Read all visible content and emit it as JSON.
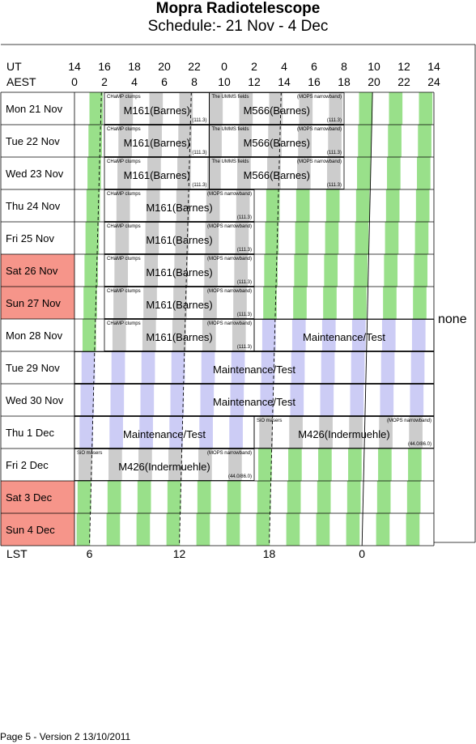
{
  "title": "Mopra Radiotelescope",
  "subtitle": "Schedule:- 21 Nov - 4  Dec",
  "ut_label": "UT",
  "aest_label": "AEST",
  "lst_label": "LST",
  "ut_ticks": [
    "14",
    "16",
    "18",
    "20",
    "22",
    "0",
    "2",
    "4",
    "6",
    "8",
    "10",
    "12",
    "14"
  ],
  "aest_ticks": [
    "0",
    "2",
    "4",
    "6",
    "8",
    "10",
    "12",
    "14",
    "16",
    "18",
    "20",
    "22",
    "24"
  ],
  "lst_ticks": [
    "6",
    "12",
    "18",
    "0"
  ],
  "days": [
    {
      "label": "Mon  21 Nov",
      "weekend": false
    },
    {
      "label": "Tue  22 Nov",
      "weekend": false
    },
    {
      "label": "Wed  23 Nov",
      "weekend": false
    },
    {
      "label": "Thu  24 Nov",
      "weekend": false
    },
    {
      "label": "Fri   25 Nov",
      "weekend": false
    },
    {
      "label": "Sat   26 Nov",
      "weekend": true
    },
    {
      "label": "Sun  27 Nov",
      "weekend": true
    },
    {
      "label": "Mon  28 Nov",
      "weekend": false
    },
    {
      "label": "Tue  29 Nov",
      "weekend": false
    },
    {
      "label": "Wed  30 Nov",
      "weekend": false
    },
    {
      "label": "Thu   1  Dec",
      "weekend": false
    },
    {
      "label": "Fri    2  Dec",
      "weekend": false
    },
    {
      "label": "Sat    3  Dec",
      "weekend": true
    },
    {
      "label": "Sun   4  Dec",
      "weekend": true
    }
  ],
  "blocks": [
    {
      "day": 0,
      "start": 2.0,
      "end": 9.0,
      "project": "M161(Barnes)",
      "top_left": "CHaMP clumps",
      "top_right": "",
      "bottom_right": "(111.3)"
    },
    {
      "day": 0,
      "start": 9.0,
      "end": 18.0,
      "project": "M566(Barnes)",
      "top_left": "The UMMS fields",
      "top_right": "(MOPS narrowband)",
      "bottom_right": "(111.3)"
    },
    {
      "day": 1,
      "start": 2.0,
      "end": 9.0,
      "project": "M161(Barnes)",
      "top_left": "CHaMP clumps",
      "top_right": "",
      "bottom_right": "(111.3)"
    },
    {
      "day": 1,
      "start": 9.0,
      "end": 18.0,
      "project": "M566(Barnes)",
      "top_left": "The UMMS fields",
      "top_right": "(MOPS narrowband)",
      "bottom_right": "(111.3)"
    },
    {
      "day": 2,
      "start": 2.0,
      "end": 9.0,
      "project": "M161(Barnes)",
      "top_left": "CHaMP clumps",
      "top_right": "",
      "bottom_right": "(111.3)"
    },
    {
      "day": 2,
      "start": 9.0,
      "end": 18.0,
      "project": "M566(Barnes)",
      "top_left": "The UMMS fields",
      "top_right": "(MOPS narrowband)",
      "bottom_right": "(111.3)"
    },
    {
      "day": 3,
      "start": 2.0,
      "end": 12.0,
      "project": "M161(Barnes)",
      "top_left": "CHaMP clumps",
      "top_right": "(MOPS narrowband)",
      "bottom_right": "(111.3)"
    },
    {
      "day": 4,
      "start": 2.0,
      "end": 12.0,
      "project": "M161(Barnes)",
      "top_left": "CHaMP clumps",
      "top_right": "(MOPS narrowband)",
      "bottom_right": "(111.3)"
    },
    {
      "day": 5,
      "start": 2.0,
      "end": 12.0,
      "project": "M161(Barnes)",
      "top_left": "CHaMP clumps",
      "top_right": "(MOPS narrowband)",
      "bottom_right": "(111.3)"
    },
    {
      "day": 6,
      "start": 2.0,
      "end": 12.0,
      "project": "M161(Barnes)",
      "top_left": "CHaMP clumps",
      "top_right": "(MOPS narrowband)",
      "bottom_right": "(111.3)"
    },
    {
      "day": 7,
      "start": 2.0,
      "end": 12.0,
      "project": "M161(Barnes)",
      "top_left": "CHaMP clumps",
      "top_right": "(MOPS narrowband)",
      "bottom_right": "(111.3)"
    },
    {
      "day": 7,
      "start": 12.0,
      "end": 24.0,
      "project": "Maintenance/Test",
      "top_left": "",
      "top_right": "",
      "bottom_right": ""
    },
    {
      "day": 8,
      "start": 0.0,
      "end": 24.0,
      "project": "Maintenance/Test",
      "top_left": "",
      "top_right": "",
      "bottom_right": ""
    },
    {
      "day": 9,
      "start": 0.0,
      "end": 24.0,
      "project": "Maintenance/Test",
      "top_left": "",
      "top_right": "",
      "bottom_right": ""
    },
    {
      "day": 10,
      "start": 0.0,
      "end": 12.0,
      "project": "Maintenance/Test",
      "top_left": "",
      "top_right": "",
      "bottom_right": ""
    },
    {
      "day": 10,
      "start": 12.0,
      "end": 24.0,
      "project": "M426(Indermuehle)",
      "top_left": "SiO masers",
      "top_right": "(MOPS narrowband)",
      "bottom_right": "(44.0/86.0)"
    },
    {
      "day": 11,
      "start": 0.0,
      "end": 12.0,
      "project": "M426(Indermuehle)",
      "top_left": "SiO masers",
      "top_right": "(MOPS narrowband)",
      "bottom_right": "(44.0/86.0)"
    }
  ],
  "stripe_colors": {
    "free": "#99e08a",
    "busy": "#cccccc",
    "maintenance": "#ccccf5",
    "weekend": "#f6958a"
  },
  "none_label": "none",
  "footer": "Page 5 - Version 2  13/10/2011"
}
